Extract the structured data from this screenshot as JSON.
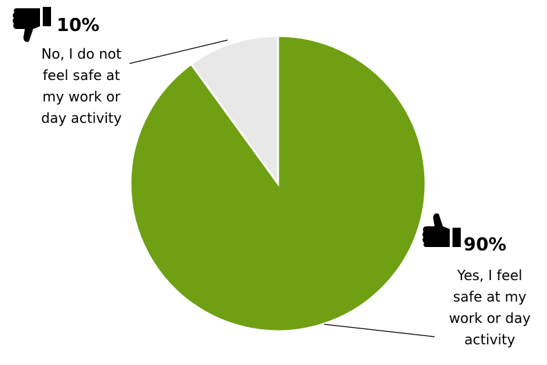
{
  "chart_data": {
    "type": "pie",
    "slices": [
      {
        "label": "No, I do not feel safe at my work or day activity",
        "value": 10,
        "value_label": "10%",
        "color": "#e8e8e8",
        "icon": "thumbs-down-icon",
        "label_lines": [
          "No, I do not",
          "feel safe at",
          "my work or",
          "day activity"
        ]
      },
      {
        "label": "Yes, I feel safe at my work or day activity",
        "value": 90,
        "value_label": "90%",
        "color": "#6fa013",
        "icon": "thumbs-up-icon",
        "label_lines": [
          "Yes, I feel",
          "safe at my",
          "work or day",
          "activity"
        ]
      }
    ],
    "legend": "none",
    "start_angle": "12 o'clock",
    "direction": "clockwise"
  }
}
